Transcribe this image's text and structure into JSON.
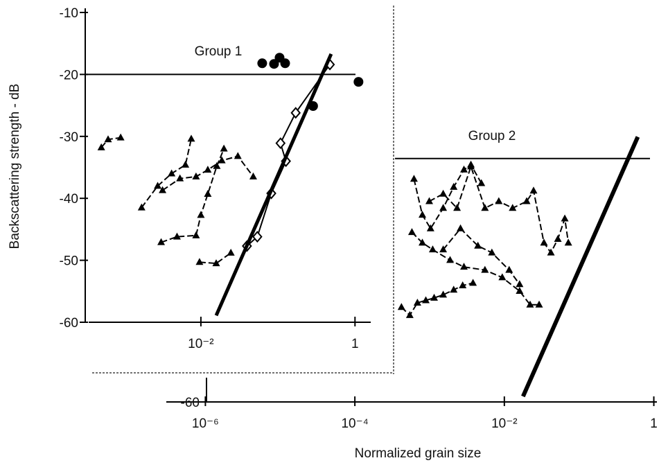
{
  "chart_data": [
    {
      "type": "scatter",
      "annotation": "Group 1",
      "ylabel": "Backscattering strength - dB",
      "xscale": "log",
      "xlim": [
        0.00035,
        1.6
      ],
      "ylim": [
        -60,
        -10
      ],
      "xticks": [
        {
          "value": 0.01,
          "label": "10⁻²"
        },
        1
      ],
      "yticks": [
        -10,
        -20,
        -30,
        -40,
        -50,
        -60
      ],
      "hline": -20,
      "color": "#000000",
      "series": [
        {
          "marker": "circle",
          "line": "none",
          "x": [
            0.0625,
            0.089,
            0.105,
            0.124,
            0.286,
            1.11
          ],
          "values": [
            -18.2,
            -18.3,
            -17.3,
            -18.2,
            -25.1,
            -21.2
          ]
        },
        {
          "marker": "diamond",
          "line": "solid",
          "x": [
            0.0396,
            0.054,
            0.082,
            0.127,
            0.108,
            0.17,
            0.472
          ],
          "values": [
            -47.7,
            -46.2,
            -39.2,
            -34.0,
            -31.1,
            -26.2,
            -18.4
          ]
        },
        {
          "marker": "none",
          "line": "solid",
          "line_width": 5,
          "x": [
            0.0158,
            0.49
          ],
          "values": [
            -58.9,
            -16.7
          ]
        },
        {
          "marker": "triangle",
          "line": "dashed",
          "x": [
            0.00051,
            0.000625,
            0.00091
          ],
          "values": [
            -31.8,
            -30.5,
            -30.2
          ]
        },
        {
          "marker": "triangle",
          "line": "dashed",
          "x": [
            0.0017,
            0.00275,
            0.00417,
            0.0063,
            0.0075
          ],
          "values": [
            -41.5,
            -38.0,
            -36.0,
            -34.6,
            -30.4
          ]
        },
        {
          "marker": "triangle",
          "line": "dashed",
          "x": [
            0.00305,
            0.0049,
            0.00865,
            0.01,
            0.0123,
            0.0161,
            0.0199
          ],
          "values": [
            -47.1,
            -46.2,
            -46.0,
            -42.7,
            -39.3,
            -34.8,
            -32.0
          ]
        },
        {
          "marker": "triangle",
          "line": "dashed",
          "x": [
            0.0096,
            0.0158,
            0.0245
          ],
          "values": [
            -50.3,
            -50.5,
            -48.8
          ]
        },
        {
          "marker": "triangle",
          "line": "dashed",
          "x": [
            0.00318,
            0.00535,
            0.00865,
            0.0123,
            0.0187,
            0.0302,
            0.0478
          ],
          "values": [
            -38.7,
            -36.8,
            -36.5,
            -35.4,
            -33.9,
            -33.2,
            -36.5
          ]
        }
      ]
    },
    {
      "type": "scatter",
      "annotation": "Group 2",
      "xlabel": "Normalized grain size",
      "xscale": "log",
      "xlim": [
        3e-07,
        1.1
      ],
      "ylim": [
        -60,
        3
      ],
      "xticks": [
        {
          "value": 1e-06,
          "label": "10⁻⁶"
        },
        {
          "value": 0.0001,
          "label": "10⁻⁴"
        },
        {
          "value": 0.01,
          "label": "10⁻²"
        },
        1
      ],
      "yticks": [
        -60
      ],
      "hline": -20.7,
      "color": "#000000",
      "series": [
        {
          "marker": "none",
          "line": "solid",
          "line_width": 6,
          "x": [
            0.0178,
            0.61
          ],
          "values": [
            -59.1,
            -17.2
          ]
        },
        {
          "marker": "triangle",
          "line": "dashed",
          "x": [
            0.00042,
            0.000543,
            0.000687,
            0.00089,
            0.00115,
            0.00152,
            0.0021,
            0.00277,
            0.00381
          ],
          "values": [
            -44.7,
            -46.0,
            -44.0,
            -43.6,
            -43.2,
            -42.7,
            -41.9,
            -41.2,
            -40.8
          ]
        },
        {
          "marker": "triangle",
          "line": "dashed",
          "x": [
            0.000618,
            0.0008,
            0.00103,
            0.00152,
            0.0021,
            0.00288,
            0.00357,
            0.00493
          ],
          "values": [
            -24.0,
            -29.8,
            -32.0,
            -28.7,
            -25.3,
            -22.5,
            -21.7,
            -24.7
          ]
        },
        {
          "marker": "triangle",
          "line": "dashed",
          "x": [
            0.00058,
            0.0008,
            0.0011,
            0.00188,
            0.00288,
            0.0055,
            0.00938,
            0.016,
            0.0221,
            0.0292
          ],
          "values": [
            -32.6,
            -34.3,
            -35.4,
            -37.1,
            -38.2,
            -38.7,
            -39.9,
            -42.1,
            -44.3,
            -44.3
          ]
        },
        {
          "marker": "triangle",
          "line": "dashed",
          "x": [
            0.00099,
            0.00152,
            0.00233,
            0.00357,
            0.0055,
            0.00843,
            0.0129,
            0.0199,
            0.0246,
            0.0339,
            0.042,
            0.052,
            0.0644,
            0.0718
          ],
          "values": [
            -27.6,
            -26.4,
            -28.7,
            -22.0,
            -28.7,
            -27.6,
            -28.7,
            -27.6,
            -25.9,
            -34.3,
            -35.9,
            -33.7,
            -30.4,
            -34.3
          ]
        },
        {
          "marker": "triangle",
          "line": "dashed",
          "x": [
            0.00152,
            0.00259,
            0.00443,
            0.00681,
            0.0116,
            0.016
          ],
          "values": [
            -35.4,
            -32.0,
            -34.8,
            -35.9,
            -38.7,
            -41.0
          ]
        }
      ]
    }
  ]
}
